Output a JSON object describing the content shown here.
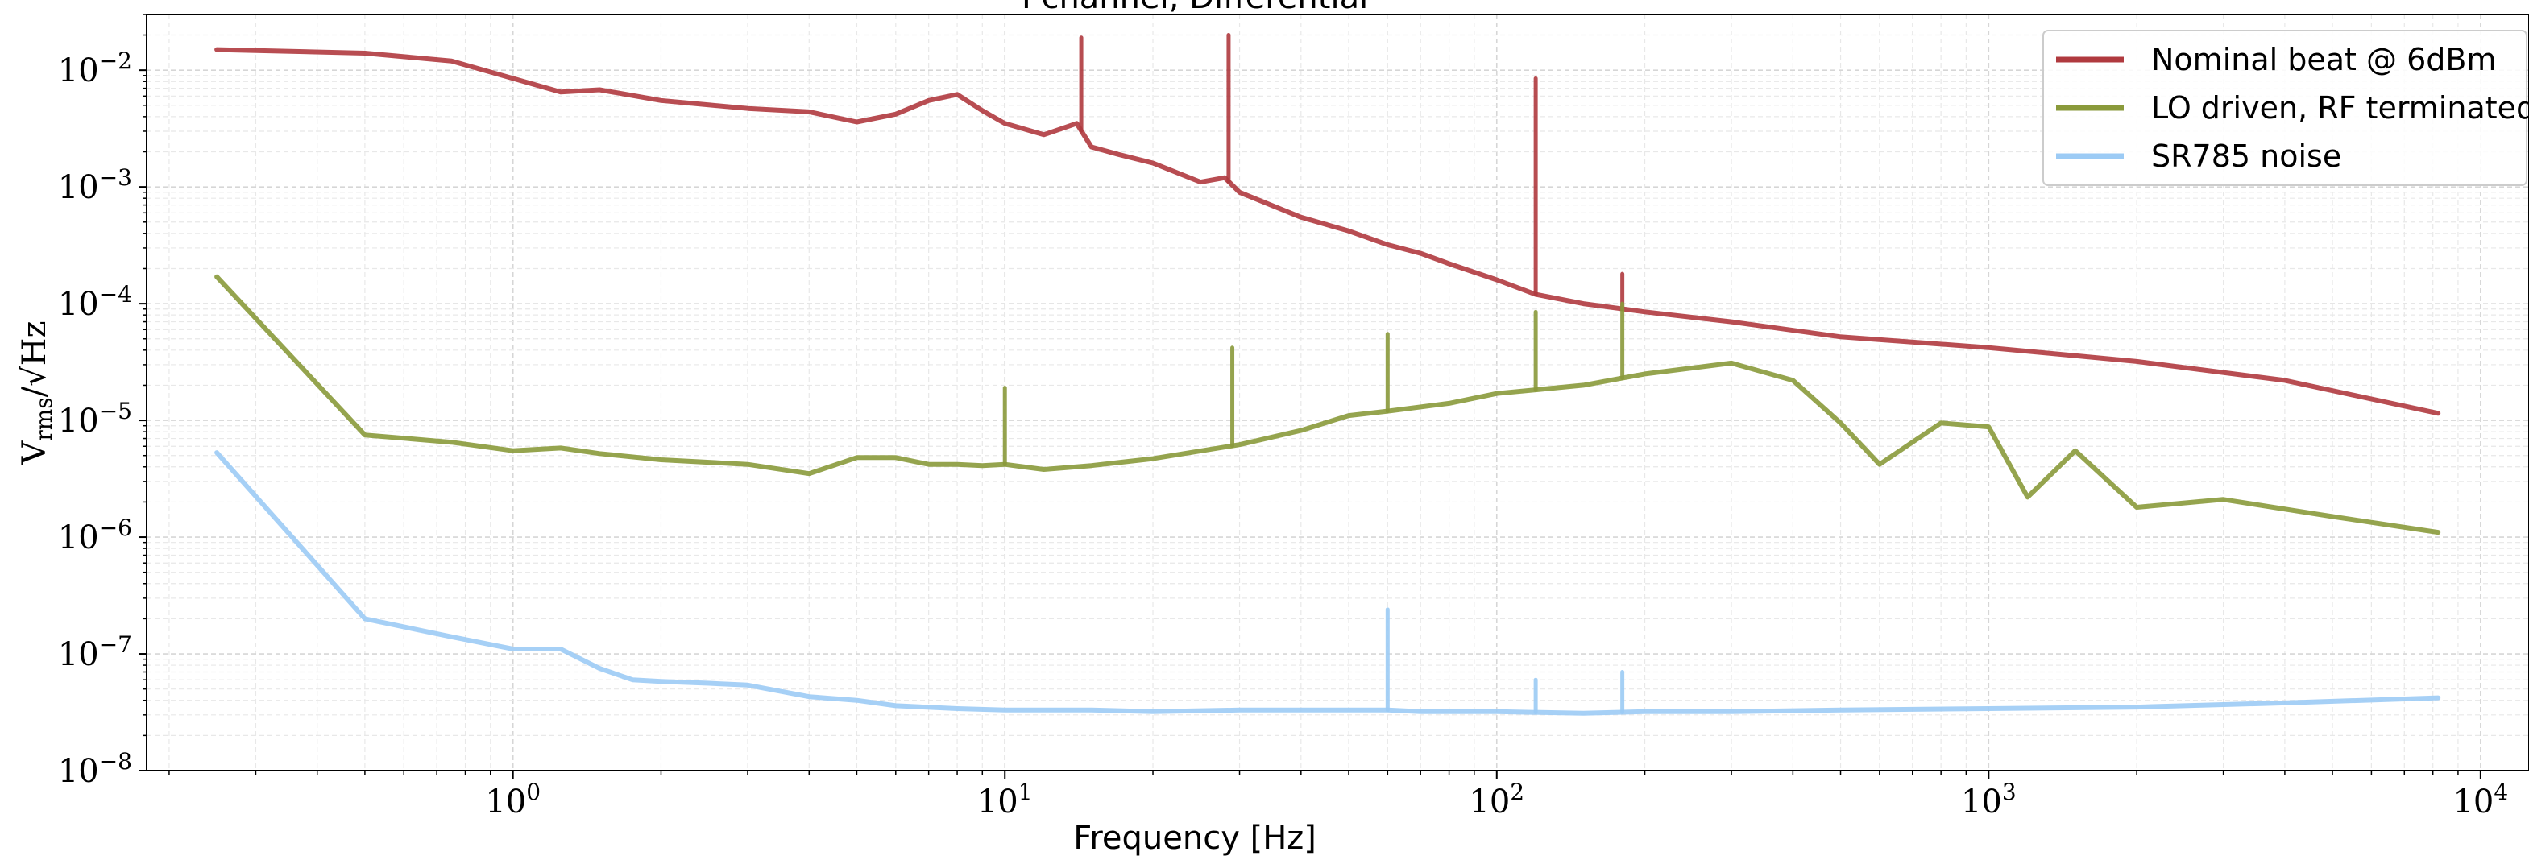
{
  "chart_data": {
    "type": "line",
    "title": "I channel, Differential",
    "xlabel": "Frequency [Hz]",
    "ylabel_main": "V",
    "ylabel_sub": "rms",
    "ylabel_unit": "Hz",
    "x_scale": "log",
    "y_scale": "log",
    "xlim": [
      0.25,
      8200
    ],
    "ylim": [
      1e-08,
      0.03
    ],
    "grid": true,
    "legend_position": "top-right",
    "x_ticks": [
      {
        "base": "10",
        "exp": "0"
      },
      {
        "base": "10",
        "exp": "1"
      },
      {
        "base": "10",
        "exp": "2"
      },
      {
        "base": "10",
        "exp": "3"
      },
      {
        "base": "10",
        "exp": "4"
      }
    ],
    "y_ticks": [
      {
        "base": "10",
        "exp": "−2"
      },
      {
        "base": "10",
        "exp": "−3"
      },
      {
        "base": "10",
        "exp": "−4"
      },
      {
        "base": "10",
        "exp": "−5"
      },
      {
        "base": "10",
        "exp": "−6"
      },
      {
        "base": "10",
        "exp": "−7"
      },
      {
        "base": "10",
        "exp": "−8"
      }
    ],
    "series": [
      {
        "name": "Nominal beat @ 6dBm",
        "color": "#b03a3f",
        "x": [
          0.25,
          0.5,
          0.75,
          1.0,
          1.25,
          1.5,
          2,
          3,
          4,
          5,
          6,
          7,
          8,
          9,
          10,
          12,
          14,
          15,
          17,
          20,
          25,
          28,
          30,
          40,
          50,
          60,
          70,
          80,
          100,
          120,
          150,
          200,
          300,
          500,
          1000,
          2000,
          4000,
          8200
        ],
        "y": [
          0.015,
          0.014,
          0.012,
          0.0085,
          0.0065,
          0.0068,
          0.0055,
          0.0047,
          0.0044,
          0.0036,
          0.0042,
          0.0055,
          0.0062,
          0.0045,
          0.0035,
          0.0028,
          0.0035,
          0.0022,
          0.0019,
          0.0016,
          0.0011,
          0.0012,
          0.0009,
          0.00055,
          0.00042,
          0.00032,
          0.00027,
          0.00022,
          0.00016,
          0.00012,
          0.0001,
          8.5e-05,
          7e-05,
          5.2e-05,
          4.2e-05,
          3.2e-05,
          2.2e-05,
          1.15e-05
        ]
      },
      {
        "name": "LO driven, RF terminated",
        "color": "#8a9a3b",
        "x": [
          0.25,
          0.5,
          0.75,
          1.0,
          1.25,
          1.5,
          2,
          3,
          4,
          5,
          6,
          7,
          8,
          9,
          10,
          12,
          15,
          20,
          30,
          40,
          50,
          60,
          80,
          100,
          150,
          200,
          300,
          400,
          500,
          600,
          800,
          1000,
          1200,
          1500,
          2000,
          3000,
          5000,
          8200
        ],
        "y": [
          0.00017,
          7.5e-06,
          6.5e-06,
          5.5e-06,
          5.8e-06,
          5.2e-06,
          4.6e-06,
          4.2e-06,
          3.5e-06,
          4.8e-06,
          4.8e-06,
          4.2e-06,
          4.2e-06,
          4.1e-06,
          4.2e-06,
          3.8e-06,
          4.1e-06,
          4.7e-06,
          6.2e-06,
          8.2e-06,
          1.1e-05,
          1.2e-05,
          1.4e-05,
          1.7e-05,
          2e-05,
          2.5e-05,
          3.1e-05,
          2.2e-05,
          9.5e-06,
          4.2e-06,
          9.5e-06,
          8.8e-06,
          2.2e-06,
          5.5e-06,
          1.8e-06,
          2.1e-06,
          1.5e-06,
          1.1e-06
        ]
      },
      {
        "name": "SR785 noise",
        "color": "#9ccbf5",
        "x": [
          0.25,
          0.5,
          0.75,
          1.0,
          1.25,
          1.5,
          1.75,
          2,
          2.5,
          3,
          4,
          5,
          6,
          8,
          10,
          15,
          20,
          30,
          50,
          60,
          70,
          100,
          150,
          200,
          300,
          500,
          1000,
          2000,
          4000,
          8200
        ],
        "y": [
          5.3e-06,
          2e-07,
          1.4e-07,
          1.1e-07,
          1.1e-07,
          7.5e-08,
          6e-08,
          5.8e-08,
          5.6e-08,
          5.4e-08,
          4.3e-08,
          4e-08,
          3.6e-08,
          3.4e-08,
          3.3e-08,
          3.3e-08,
          3.2e-08,
          3.3e-08,
          3.3e-08,
          3.3e-08,
          3.2e-08,
          3.2e-08,
          3.1e-08,
          3.2e-08,
          3.2e-08,
          3.3e-08,
          3.4e-08,
          3.5e-08,
          3.8e-08,
          4.2e-08
        ]
      }
    ],
    "annotations": [
      {
        "series": "Nominal beat @ 6dBm",
        "x": 14.3,
        "y": 0.019
      },
      {
        "series": "Nominal beat @ 6dBm",
        "x": 28.5,
        "y": 0.02
      },
      {
        "series": "Nominal beat @ 6dBm",
        "x": 120,
        "y": 0.0085
      },
      {
        "series": "Nominal beat @ 6dBm",
        "x": 180,
        "y": 0.00018
      },
      {
        "series": "LO driven, RF terminated",
        "x": 10,
        "y": 1.9e-05
      },
      {
        "series": "LO driven, RF terminated",
        "x": 29,
        "y": 4.2e-05
      },
      {
        "series": "LO driven, RF terminated",
        "x": 60,
        "y": 5.5e-05
      },
      {
        "series": "LO driven, RF terminated",
        "x": 120,
        "y": 8.5e-05
      },
      {
        "series": "LO driven, RF terminated",
        "x": 180,
        "y": 0.0001
      },
      {
        "series": "SR785 noise",
        "x": 60,
        "y": 2.4e-07
      },
      {
        "series": "SR785 noise",
        "x": 120,
        "y": 6e-08
      },
      {
        "series": "SR785 noise",
        "x": 180,
        "y": 7e-08
      }
    ]
  }
}
